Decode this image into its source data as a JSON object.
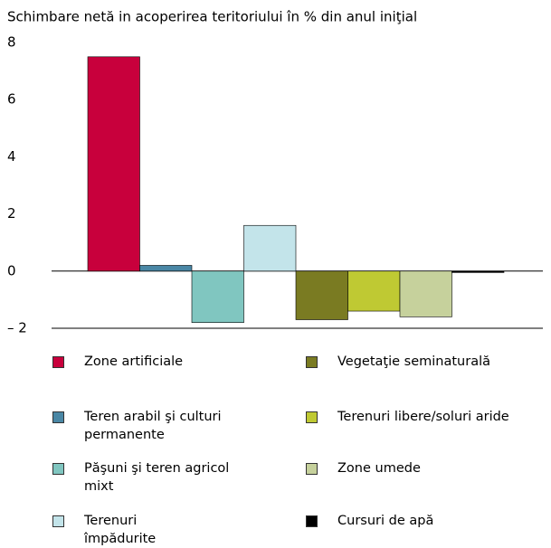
{
  "chart_data": {
    "type": "bar",
    "title": "Schimbare netă in acoperirea teritoriului în % din anul iniţial",
    "series": [
      {
        "name": "Zone artificiale",
        "color": "#c8003c",
        "values": [
          7.5
        ]
      },
      {
        "name": "Teren arabil şi culturi permanente",
        "color": "#4a87a5",
        "values": [
          0.2
        ]
      },
      {
        "name": "Păşuni şi teren agricol mixt",
        "color": "#80c6c0",
        "values": [
          -1.8
        ]
      },
      {
        "name": "Terenuri împădurite",
        "color": "#c3e4ea",
        "values": [
          1.6
        ]
      },
      {
        "name": "Vegetaţie seminaturală",
        "color": "#7a7b22",
        "values": [
          -1.7
        ]
      },
      {
        "name": "Terenuri libere/soluri aride",
        "color": "#bfc933",
        "values": [
          -1.4
        ]
      },
      {
        "name": "Zone umede",
        "color": "#c6d19c",
        "values": [
          -1.6
        ]
      },
      {
        "name": "Cursuri de apă",
        "color": "#000000",
        "values": [
          -0.05
        ]
      }
    ],
    "ylim": [
      -2,
      8
    ],
    "yticks": [
      {
        "value": -2,
        "label": "– 2"
      },
      0,
      2,
      4,
      6,
      8
    ]
  }
}
